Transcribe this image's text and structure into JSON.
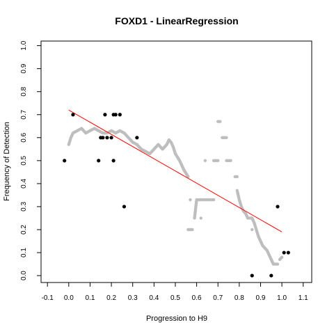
{
  "chart_data": {
    "type": "scatter",
    "title": "FOXD1 - LinearRegression",
    "xlabel": "Progression to H9",
    "ylabel": "Frequency of Detection",
    "xlim": [
      -0.13,
      1.14
    ],
    "ylim": [
      -0.03,
      1.02
    ],
    "x_ticks": [
      "-0.1",
      "0.0",
      "0.1",
      "0.2",
      "0.3",
      "0.4",
      "0.5",
      "0.6",
      "0.7",
      "0.8",
      "0.9",
      "1.0",
      "1.1"
    ],
    "y_ticks": [
      "0.0",
      "0.1",
      "0.2",
      "0.3",
      "0.4",
      "0.5",
      "0.6",
      "0.7",
      "0.8",
      "0.9",
      "1.0"
    ],
    "grid": false,
    "legend": "none",
    "colors": {
      "observed": "#000000",
      "smoothed": "#bebebe",
      "regression": "#ff0000"
    },
    "series": [
      {
        "key": "observed",
        "values": [
          [
            -0.02,
            0.5
          ],
          [
            0.02,
            0.7
          ],
          [
            0.14,
            0.5
          ],
          [
            0.15,
            0.6
          ],
          [
            0.16,
            0.6
          ],
          [
            0.17,
            0.7
          ],
          [
            0.18,
            0.6
          ],
          [
            0.2,
            0.6
          ],
          [
            0.21,
            0.7
          ],
          [
            0.21,
            0.5
          ],
          [
            0.22,
            0.7
          ],
          [
            0.24,
            0.7
          ],
          [
            0.26,
            0.3
          ],
          [
            0.32,
            0.6
          ],
          [
            0.86,
            0.0
          ],
          [
            0.95,
            0.0
          ],
          [
            0.98,
            0.3
          ],
          [
            1.01,
            0.1
          ],
          [
            1.03,
            0.1
          ]
        ]
      },
      {
        "key": "smoothed",
        "segments": [
          [
            [
              0.0,
              0.57
            ],
            [
              0.01,
              0.6
            ],
            [
              0.02,
              0.62
            ],
            [
              0.04,
              0.63
            ],
            [
              0.06,
              0.64
            ],
            [
              0.08,
              0.62
            ],
            [
              0.1,
              0.63
            ],
            [
              0.12,
              0.64
            ],
            [
              0.14,
              0.63
            ],
            [
              0.16,
              0.62
            ],
            [
              0.18,
              0.62
            ],
            [
              0.2,
              0.63
            ],
            [
              0.22,
              0.62
            ],
            [
              0.24,
              0.63
            ],
            [
              0.26,
              0.62
            ],
            [
              0.28,
              0.6
            ],
            [
              0.3,
              0.58
            ],
            [
              0.32,
              0.57
            ],
            [
              0.34,
              0.55
            ],
            [
              0.36,
              0.54
            ],
            [
              0.38,
              0.53
            ],
            [
              0.4,
              0.55
            ],
            [
              0.42,
              0.57
            ],
            [
              0.44,
              0.55
            ],
            [
              0.46,
              0.57
            ],
            [
              0.47,
              0.59
            ],
            [
              0.48,
              0.58
            ],
            [
              0.49,
              0.56
            ],
            [
              0.5,
              0.53
            ],
            [
              0.52,
              0.5
            ],
            [
              0.54,
              0.46
            ],
            [
              0.56,
              0.43
            ]
          ],
          [
            [
              0.57,
              0.33
            ]
          ],
          [
            [
              0.56,
              0.2
            ],
            [
              0.58,
              0.2
            ]
          ],
          [
            [
              0.59,
              0.25
            ],
            [
              0.6,
              0.33
            ],
            [
              0.62,
              0.33
            ],
            [
              0.64,
              0.33
            ],
            [
              0.66,
              0.33
            ],
            [
              0.68,
              0.33
            ]
          ],
          [
            [
              0.62,
              0.25
            ]
          ],
          [
            [
              0.64,
              0.5
            ]
          ],
          [
            [
              0.68,
              0.5
            ],
            [
              0.7,
              0.5
            ]
          ],
          [
            [
              0.7,
              0.67
            ],
            [
              0.71,
              0.67
            ]
          ],
          [
            [
              0.72,
              0.6
            ],
            [
              0.74,
              0.6
            ]
          ],
          [
            [
              0.74,
              0.5
            ],
            [
              0.76,
              0.5
            ]
          ],
          [
            [
              0.78,
              0.43
            ],
            [
              0.79,
              0.43
            ]
          ],
          [
            [
              0.79,
              0.37
            ],
            [
              0.8,
              0.33
            ],
            [
              0.81,
              0.3
            ],
            [
              0.82,
              0.28
            ],
            [
              0.83,
              0.27
            ],
            [
              0.84,
              0.25
            ],
            [
              0.86,
              0.25
            ],
            [
              0.87,
              0.23
            ],
            [
              0.88,
              0.2
            ],
            [
              0.89,
              0.17
            ],
            [
              0.9,
              0.15
            ],
            [
              0.91,
              0.13
            ],
            [
              0.92,
              0.12
            ],
            [
              0.93,
              0.11
            ],
            [
              0.94,
              0.09
            ],
            [
              0.95,
              0.07
            ],
            [
              0.96,
              0.05
            ],
            [
              0.97,
              0.05
            ],
            [
              0.98,
              0.05
            ]
          ],
          [
            [
              0.86,
              0.2
            ]
          ],
          [
            [
              0.99,
              0.07
            ],
            [
              1.0,
              0.08
            ]
          ]
        ]
      },
      {
        "key": "regression",
        "values": [
          [
            0.0,
            0.72
          ],
          [
            1.0,
            0.19
          ]
        ]
      }
    ]
  }
}
